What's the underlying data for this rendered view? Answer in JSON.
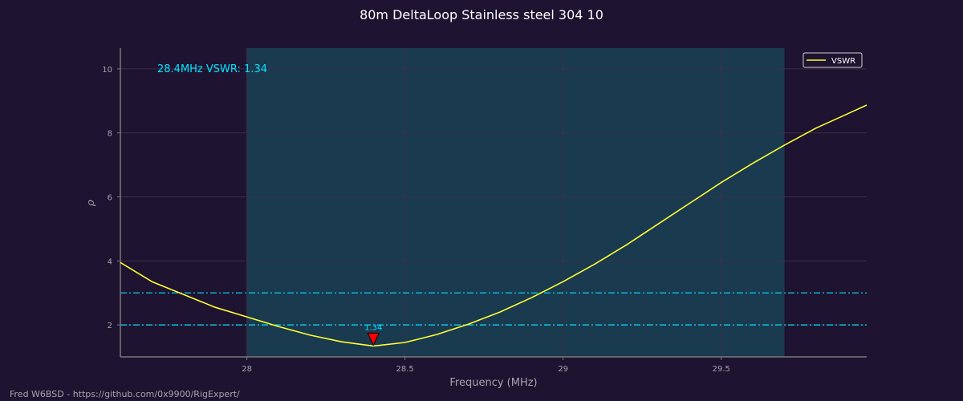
{
  "chart_data": {
    "type": "line",
    "title": "80m DeltaLoop Stainless steel 304 10",
    "xlabel": "Frequency (MHz)",
    "ylabel": "ρ",
    "xlim": [
      27.6,
      29.96
    ],
    "ylim": [
      1.0,
      10.65
    ],
    "xticks": [
      28,
      28.5,
      29,
      29.5
    ],
    "xtick_labels": [
      "28",
      "28.5",
      "29",
      "29.5"
    ],
    "yticks": [
      2,
      4,
      6,
      8,
      10
    ],
    "ytick_labels": [
      "2",
      "4",
      "6",
      "8",
      "10"
    ],
    "grid": true,
    "legend_position": "top-right",
    "band": {
      "x_start": 28.0,
      "x_end": 29.7
    },
    "reference_lines": [
      2,
      3
    ],
    "series": [
      {
        "name": "VSWR",
        "color": "#ffff33",
        "x": [
          27.6,
          27.7,
          27.8,
          27.9,
          28.0,
          28.1,
          28.2,
          28.3,
          28.4,
          28.5,
          28.6,
          28.7,
          28.8,
          28.9,
          29.0,
          29.1,
          29.2,
          29.3,
          29.4,
          29.5,
          29.6,
          29.7,
          29.8,
          29.9,
          29.96
        ],
        "y": [
          3.95,
          3.35,
          2.95,
          2.55,
          2.25,
          1.95,
          1.68,
          1.47,
          1.34,
          1.45,
          1.7,
          2.02,
          2.4,
          2.85,
          3.35,
          3.9,
          4.5,
          5.15,
          5.8,
          6.45,
          7.05,
          7.62,
          8.15,
          8.6,
          8.87
        ]
      }
    ],
    "marker": {
      "x": 28.4,
      "y": 1.34,
      "label": "1.34"
    },
    "annotation": "28.4MHz VSWR: 1.34"
  },
  "footer": "Fred W6BSD - https://github.com/0x9900/RigExpert/",
  "colors": {
    "background": "#1e1330",
    "band": "#1a3a50",
    "grid": "#3a3347",
    "spine": "#7a7a7a",
    "tick_text": "#a8a4ae",
    "reference": "#00e5ff",
    "annotation": "#00e5ff",
    "marker_fill": "#ff0000",
    "series": "#ffff33",
    "title": "#ffffff"
  }
}
